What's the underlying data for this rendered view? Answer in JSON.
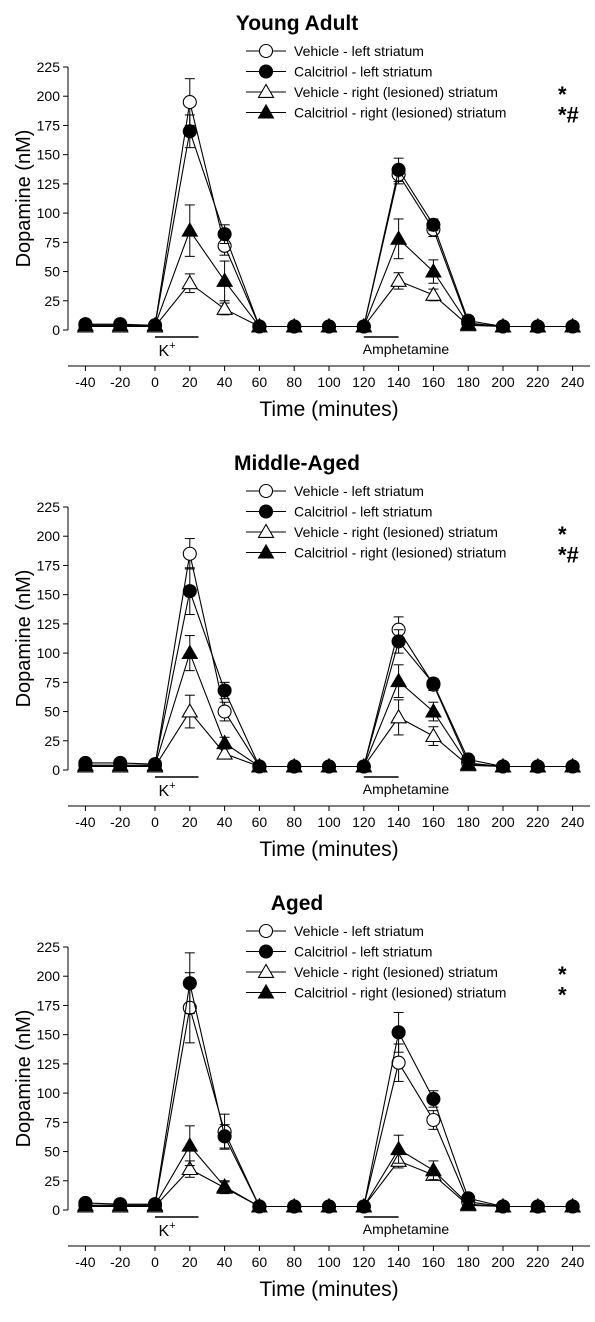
{
  "chart_data": [
    {
      "type": "line",
      "title": "Young Adult",
      "xlabel": "Time (minutes)",
      "ylabel": "Dopamine (nM)",
      "x": [
        -40,
        -20,
        0,
        20,
        40,
        60,
        80,
        100,
        120,
        140,
        160,
        180,
        200,
        220,
        240
      ],
      "xticks": [
        "-40",
        "-20",
        "0",
        "20",
        "40",
        "60",
        "80",
        "100",
        "120",
        "140",
        "160",
        "180",
        "200",
        "220",
        "240"
      ],
      "yticks": [
        "0",
        "25",
        "50",
        "75",
        "100",
        "125",
        "150",
        "175",
        "200",
        "225"
      ],
      "ylim": [
        0,
        225
      ],
      "xlim": [
        -50,
        250
      ],
      "legend_position": "top-right",
      "annotations": {
        "k_label": "K",
        "k_sup": "+",
        "amph_label": "Amphetamine",
        "k_bar": [
          0,
          25
        ],
        "amph_bar": [
          120,
          140
        ]
      },
      "series": [
        {
          "name": "Vehicle - left striatum",
          "marker": "circle-open",
          "sig": "",
          "values": [
            4,
            4,
            4,
            195,
            72,
            3,
            3,
            3,
            3,
            133,
            86,
            6,
            3,
            3,
            3
          ],
          "err": [
            0,
            0,
            0,
            20,
            8,
            0,
            0,
            0,
            0,
            8,
            6,
            2,
            0,
            0,
            0
          ]
        },
        {
          "name": "Calcitriol - left striatum",
          "marker": "circle-filled",
          "sig": "",
          "values": [
            5,
            5,
            4,
            170,
            82,
            3,
            3,
            3,
            3,
            137,
            90,
            8,
            3,
            3,
            3
          ],
          "err": [
            0,
            0,
            0,
            14,
            8,
            0,
            0,
            0,
            0,
            10,
            5,
            2,
            0,
            0,
            0
          ]
        },
        {
          "name": "Vehicle - right (lesioned) striatum",
          "marker": "triangle-open",
          "sig": "*",
          "values": [
            3,
            3,
            3,
            40,
            18,
            3,
            3,
            3,
            3,
            42,
            30,
            4,
            3,
            3,
            3
          ],
          "err": [
            0,
            0,
            0,
            8,
            5,
            0,
            0,
            0,
            0,
            7,
            5,
            1,
            0,
            0,
            0
          ]
        },
        {
          "name": "Calcitriol - right (lesioned) striatum",
          "marker": "triangle-filled",
          "sig": "*#",
          "values": [
            4,
            4,
            4,
            85,
            42,
            3,
            3,
            3,
            3,
            78,
            50,
            5,
            3,
            3,
            3
          ],
          "err": [
            0,
            0,
            0,
            22,
            17,
            0,
            0,
            0,
            0,
            17,
            10,
            1,
            0,
            0,
            0
          ]
        }
      ]
    },
    {
      "type": "line",
      "title": "Middle-Aged",
      "xlabel": "Time (minutes)",
      "ylabel": "Dopamine (nM)",
      "x": [
        -40,
        -20,
        0,
        20,
        40,
        60,
        80,
        100,
        120,
        140,
        160,
        180,
        200,
        220,
        240
      ],
      "xticks": [
        "-40",
        "-20",
        "0",
        "20",
        "40",
        "60",
        "80",
        "100",
        "120",
        "140",
        "160",
        "180",
        "200",
        "220",
        "240"
      ],
      "yticks": [
        "0",
        "25",
        "50",
        "75",
        "100",
        "125",
        "150",
        "175",
        "200",
        "225"
      ],
      "ylim": [
        0,
        225
      ],
      "xlim": [
        -50,
        250
      ],
      "legend_position": "top-right",
      "annotations": {
        "k_label": "K",
        "k_sup": "+",
        "amph_label": "Amphetamine",
        "k_bar": [
          0,
          25
        ],
        "amph_bar": [
          120,
          140
        ]
      },
      "series": [
        {
          "name": "Vehicle - left striatum",
          "marker": "circle-open",
          "sig": "",
          "values": [
            4,
            4,
            4,
            185,
            50,
            3,
            3,
            3,
            3,
            120,
            73,
            6,
            3,
            3,
            3
          ],
          "err": [
            0,
            0,
            0,
            13,
            8,
            0,
            0,
            0,
            0,
            11,
            5,
            2,
            0,
            0,
            0
          ]
        },
        {
          "name": "Calcitriol - left striatum",
          "marker": "circle-filled",
          "sig": "",
          "values": [
            6,
            6,
            5,
            153,
            68,
            3,
            3,
            3,
            3,
            110,
            74,
            9,
            3,
            3,
            3
          ],
          "err": [
            0,
            0,
            0,
            20,
            7,
            0,
            0,
            0,
            0,
            10,
            4,
            2,
            0,
            0,
            0
          ]
        },
        {
          "name": "Vehicle - right (lesioned) striatum",
          "marker": "triangle-open",
          "sig": "*",
          "values": [
            3,
            3,
            3,
            50,
            14,
            3,
            3,
            3,
            3,
            45,
            29,
            4,
            3,
            3,
            3
          ],
          "err": [
            0,
            0,
            0,
            14,
            4,
            0,
            0,
            0,
            0,
            15,
            8,
            1,
            0,
            0,
            0
          ]
        },
        {
          "name": "Calcitriol - right (lesioned) striatum",
          "marker": "triangle-filled",
          "sig": "*#",
          "values": [
            4,
            4,
            4,
            100,
            23,
            3,
            3,
            3,
            3,
            76,
            50,
            5,
            3,
            3,
            3
          ],
          "err": [
            0,
            0,
            0,
            15,
            5,
            0,
            0,
            0,
            0,
            14,
            8,
            1,
            0,
            0,
            0
          ]
        }
      ]
    },
    {
      "type": "line",
      "title": "Aged",
      "xlabel": "Time (minutes)",
      "ylabel": "Dopamine (nM)",
      "x": [
        -40,
        -20,
        0,
        20,
        40,
        60,
        80,
        100,
        120,
        140,
        160,
        180,
        200,
        220,
        240
      ],
      "xticks": [
        "-40",
        "-20",
        "0",
        "20",
        "40",
        "60",
        "80",
        "100",
        "120",
        "140",
        "160",
        "180",
        "200",
        "220",
        "240"
      ],
      "yticks": [
        "0",
        "25",
        "50",
        "75",
        "100",
        "125",
        "150",
        "175",
        "200",
        "225"
      ],
      "ylim": [
        0,
        225
      ],
      "xlim": [
        -50,
        250
      ],
      "legend_position": "top-right",
      "annotations": {
        "k_label": "K",
        "k_sup": "+",
        "amph_label": "Amphetamine",
        "k_bar": [
          0,
          25
        ],
        "amph_bar": [
          120,
          140
        ]
      },
      "series": [
        {
          "name": "Vehicle - left striatum",
          "marker": "circle-open",
          "sig": "",
          "values": [
            4,
            4,
            4,
            173,
            67,
            3,
            3,
            3,
            3,
            126,
            77,
            7,
            3,
            3,
            3
          ],
          "err": [
            0,
            0,
            0,
            30,
            15,
            0,
            0,
            0,
            0,
            16,
            8,
            2,
            0,
            0,
            0
          ]
        },
        {
          "name": "Calcitriol - left striatum",
          "marker": "circle-filled",
          "sig": "",
          "values": [
            6,
            5,
            5,
            194,
            63,
            3,
            3,
            3,
            3,
            152,
            95,
            10,
            3,
            3,
            3
          ],
          "err": [
            0,
            0,
            0,
            26,
            10,
            0,
            0,
            0,
            0,
            17,
            7,
            3,
            0,
            0,
            0
          ]
        },
        {
          "name": "Vehicle - right (lesioned) striatum",
          "marker": "triangle-open",
          "sig": "*",
          "values": [
            3,
            3,
            3,
            35,
            19,
            3,
            3,
            3,
            3,
            42,
            30,
            4,
            3,
            3,
            3
          ],
          "err": [
            0,
            0,
            0,
            7,
            5,
            0,
            0,
            0,
            0,
            6,
            4,
            1,
            0,
            0,
            0
          ]
        },
        {
          "name": "Calcitriol - right (lesioned) striatum",
          "marker": "triangle-filled",
          "sig": "*",
          "values": [
            4,
            4,
            4,
            55,
            20,
            3,
            3,
            3,
            3,
            52,
            34,
            5,
            3,
            3,
            3
          ],
          "err": [
            0,
            0,
            0,
            17,
            5,
            0,
            0,
            0,
            0,
            12,
            8,
            1,
            0,
            0,
            0
          ]
        }
      ]
    }
  ]
}
